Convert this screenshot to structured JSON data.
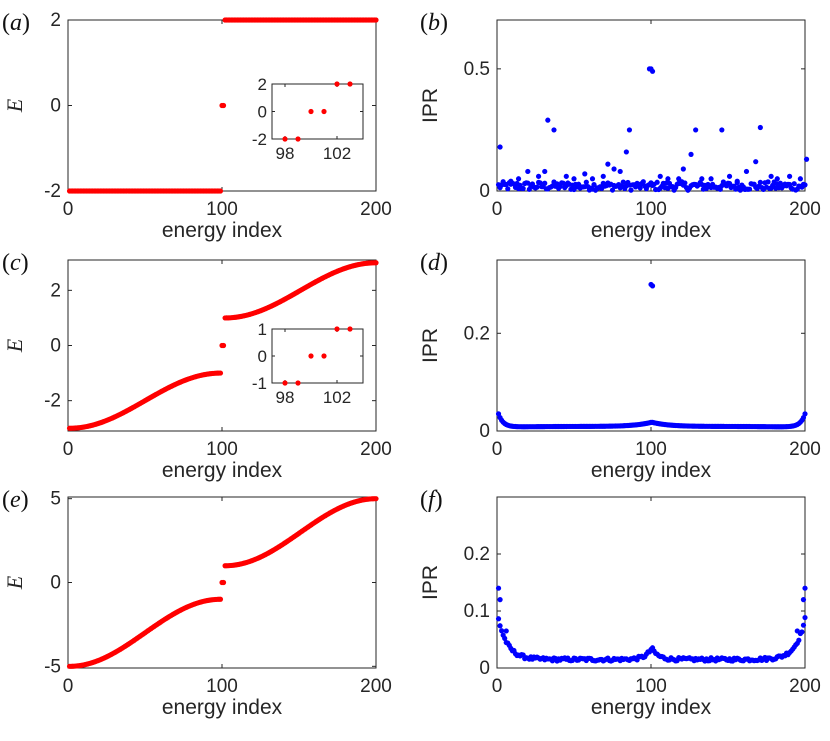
{
  "figure": {
    "colors": {
      "energy": "#ff0000",
      "ipr": "#0000ff",
      "axis": "#262626"
    }
  },
  "chart_data": [
    {
      "id": "a",
      "type": "scatter",
      "panel_label": "a",
      "marker_color": "#ff0000",
      "xlabel": "energy index",
      "ylabel": "E",
      "xlim": [
        0,
        200
      ],
      "ylim": [
        -2,
        2
      ],
      "xticks": [
        0,
        100,
        200
      ],
      "xtick_labels": [
        "0",
        "100",
        "200"
      ],
      "yticks": [
        -2,
        0,
        2
      ],
      "ytick_labels": [
        "-2",
        "0",
        "2"
      ],
      "series": [
        {
          "name": "energy",
          "model": "flat_bands",
          "low": -2,
          "high": 2,
          "mid_indices": [
            100,
            101
          ]
        }
      ],
      "inset": {
        "xlim": [
          97,
          104
        ],
        "ylim": [
          -2,
          2
        ],
        "xticks": [
          98,
          102
        ],
        "xtick_labels": [
          "98",
          "102"
        ],
        "yticks": [
          -2,
          0,
          2
        ],
        "ytick_labels": [
          "-2",
          "0",
          "2"
        ],
        "x": [
          98,
          99,
          100,
          101,
          102,
          103
        ],
        "y": [
          -2,
          -2,
          0,
          0,
          2,
          2
        ]
      }
    },
    {
      "id": "b",
      "type": "scatter",
      "panel_label": "b",
      "marker_color": "#0000ff",
      "xlabel": "energy index",
      "ylabel": "IPR",
      "xlim": [
        0,
        200
      ],
      "ylim": [
        0,
        0.7
      ],
      "xticks": [
        0,
        100,
        200
      ],
      "xtick_labels": [
        "0",
        "100",
        "200"
      ],
      "yticks": [
        0,
        0.5
      ],
      "ytick_labels": [
        "0",
        "0.5"
      ],
      "series": [
        {
          "name": "IPR",
          "model": "noisy",
          "x": [
            2,
            9,
            14,
            20,
            27,
            31,
            33,
            37,
            45,
            50,
            57,
            62,
            69,
            72,
            76,
            80,
            84,
            86,
            99,
            100,
            101,
            106,
            111,
            118,
            121,
            126,
            129,
            133,
            139,
            146,
            151,
            156,
            162,
            168,
            171,
            178,
            182,
            190,
            197,
            201
          ],
          "y": [
            0.18,
            0.04,
            0.05,
            0.08,
            0.06,
            0.08,
            0.29,
            0.25,
            0.06,
            0.05,
            0.07,
            0.05,
            0.06,
            0.11,
            0.09,
            0.08,
            0.16,
            0.25,
            0.5,
            0.5,
            0.49,
            0.06,
            0.05,
            0.05,
            0.09,
            0.15,
            0.25,
            0.05,
            0.05,
            0.25,
            0.06,
            0.04,
            0.08,
            0.12,
            0.26,
            0.06,
            0.05,
            0.06,
            0.05,
            0.13
          ]
        }
      ]
    },
    {
      "id": "c",
      "type": "scatter",
      "panel_label": "c",
      "marker_color": "#ff0000",
      "xlabel": "energy index",
      "ylabel": "E",
      "xlim": [
        0,
        200
      ],
      "ylim": [
        -3.1,
        3.1
      ],
      "xticks": [
        0,
        100,
        200
      ],
      "xtick_labels": [
        "0",
        "100",
        "200"
      ],
      "yticks": [
        -2,
        0,
        2
      ],
      "ytick_labels": [
        "-2",
        "0",
        "2"
      ],
      "series": [
        {
          "name": "energy",
          "model": "cosine_band",
          "amp": 3,
          "gap": 1
        }
      ],
      "inset": {
        "xlim": [
          97,
          104
        ],
        "ylim": [
          -1,
          1
        ],
        "xticks": [
          98,
          102
        ],
        "xtick_labels": [
          "98",
          "102"
        ],
        "yticks": [
          -1,
          0,
          1
        ],
        "ytick_labels": [
          "-1",
          "0",
          "1"
        ],
        "x": [
          98,
          99,
          100,
          101,
          102,
          103
        ],
        "y": [
          -1,
          -1,
          0,
          0,
          1,
          1
        ]
      }
    },
    {
      "id": "d",
      "type": "scatter",
      "panel_label": "d",
      "marker_color": "#0000ff",
      "xlabel": "energy index",
      "ylabel": "IPR",
      "xlim": [
        0,
        200
      ],
      "ylim": [
        0,
        0.35
      ],
      "xticks": [
        0,
        100,
        200
      ],
      "xtick_labels": [
        "0",
        "100",
        "200"
      ],
      "yticks": [
        0,
        0.2
      ],
      "ytick_labels": [
        "0",
        "0.2"
      ],
      "series": [
        {
          "name": "IPR",
          "model": "smooth",
          "edge": 0.035,
          "base": 0.008,
          "center": 0.018,
          "peak_x": [
            100,
            101
          ],
          "peak_y": [
            0.3,
            0.297
          ]
        }
      ]
    },
    {
      "id": "e",
      "type": "scatter",
      "panel_label": "e",
      "marker_color": "#ff0000",
      "xlabel": "energy index",
      "ylabel": "E",
      "xlim": [
        0,
        200
      ],
      "ylim": [
        -5.1,
        5.1
      ],
      "xticks": [
        0,
        100,
        200
      ],
      "xtick_labels": [
        "0",
        "100",
        "200"
      ],
      "yticks": [
        -5,
        0,
        5
      ],
      "ytick_labels": [
        "-5",
        "0",
        "5"
      ],
      "series": [
        {
          "name": "energy",
          "model": "cosine_band",
          "amp": 5,
          "gap": 1
        }
      ]
    },
    {
      "id": "f",
      "type": "scatter",
      "panel_label": "f",
      "marker_color": "#0000ff",
      "xlabel": "energy index",
      "ylabel": "IPR",
      "xlim": [
        0,
        200
      ],
      "ylim": [
        0,
        0.3
      ],
      "xticks": [
        0,
        100,
        200
      ],
      "xtick_labels": [
        "0",
        "100",
        "200"
      ],
      "yticks": [
        0,
        0.1,
        0.2
      ],
      "ytick_labels": [
        "0",
        "0.1",
        "0.2"
      ],
      "series": [
        {
          "name": "IPR",
          "model": "noisy_floor",
          "edge": [
            0.14,
            0.12
          ],
          "base": 0.015,
          "center": 0.035
        }
      ]
    }
  ]
}
